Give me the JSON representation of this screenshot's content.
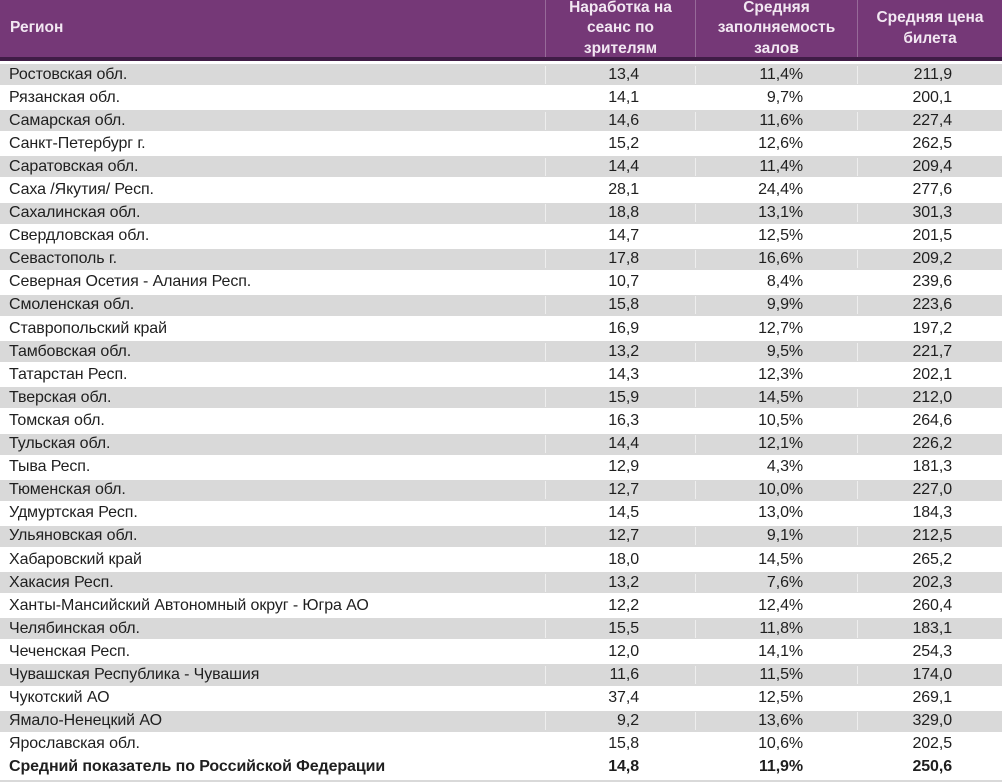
{
  "colors": {
    "header_bg": "#753877",
    "header_border": "#401c46",
    "band_row": "#d9d9d9",
    "header_text": "#f2e7f2",
    "body_text": "#1f1f1f"
  },
  "chart_data": {
    "type": "table",
    "columns": [
      "Регион",
      "Наработка на сеанс по зрителям",
      "Средняя заполняемость залов",
      "Средняя цена билета"
    ],
    "rows": [
      {
        "region": "Ростовская обл.",
        "viewers_per_session": "13,4",
        "occupancy": "11,4%",
        "ticket_price": "211,9"
      },
      {
        "region": "Рязанская обл.",
        "viewers_per_session": "14,1",
        "occupancy": "9,7%",
        "ticket_price": "200,1"
      },
      {
        "region": "Самарская обл.",
        "viewers_per_session": "14,6",
        "occupancy": "11,6%",
        "ticket_price": "227,4"
      },
      {
        "region": "Санкт-Петербург г.",
        "viewers_per_session": "15,2",
        "occupancy": "12,6%",
        "ticket_price": "262,5"
      },
      {
        "region": "Саратовская обл.",
        "viewers_per_session": "14,4",
        "occupancy": "11,4%",
        "ticket_price": "209,4"
      },
      {
        "region": "Саха /Якутия/ Респ.",
        "viewers_per_session": "28,1",
        "occupancy": "24,4%",
        "ticket_price": "277,6"
      },
      {
        "region": "Сахалинская обл.",
        "viewers_per_session": "18,8",
        "occupancy": "13,1%",
        "ticket_price": "301,3"
      },
      {
        "region": "Свердловская обл.",
        "viewers_per_session": "14,7",
        "occupancy": "12,5%",
        "ticket_price": "201,5"
      },
      {
        "region": "Севастополь г.",
        "viewers_per_session": "17,8",
        "occupancy": "16,6%",
        "ticket_price": "209,2"
      },
      {
        "region": "Северная Осетия - Алания Респ.",
        "viewers_per_session": "10,7",
        "occupancy": "8,4%",
        "ticket_price": "239,6"
      },
      {
        "region": "Смоленская обл.",
        "viewers_per_session": "15,8",
        "occupancy": "9,9%",
        "ticket_price": "223,6"
      },
      {
        "region": "Ставропольский край",
        "viewers_per_session": "16,9",
        "occupancy": "12,7%",
        "ticket_price": "197,2"
      },
      {
        "region": "Тамбовская обл.",
        "viewers_per_session": "13,2",
        "occupancy": "9,5%",
        "ticket_price": "221,7"
      },
      {
        "region": "Татарстан Респ.",
        "viewers_per_session": "14,3",
        "occupancy": "12,3%",
        "ticket_price": "202,1"
      },
      {
        "region": "Тверская обл.",
        "viewers_per_session": "15,9",
        "occupancy": "14,5%",
        "ticket_price": "212,0"
      },
      {
        "region": "Томская обл.",
        "viewers_per_session": "16,3",
        "occupancy": "10,5%",
        "ticket_price": "264,6"
      },
      {
        "region": "Тульская обл.",
        "viewers_per_session": "14,4",
        "occupancy": "12,1%",
        "ticket_price": "226,2"
      },
      {
        "region": "Тыва Респ.",
        "viewers_per_session": "12,9",
        "occupancy": "4,3%",
        "ticket_price": "181,3"
      },
      {
        "region": "Тюменская обл.",
        "viewers_per_session": "12,7",
        "occupancy": "10,0%",
        "ticket_price": "227,0"
      },
      {
        "region": "Удмуртская Респ.",
        "viewers_per_session": "14,5",
        "occupancy": "13,0%",
        "ticket_price": "184,3"
      },
      {
        "region": "Ульяновская обл.",
        "viewers_per_session": "12,7",
        "occupancy": "9,1%",
        "ticket_price": "212,5"
      },
      {
        "region": "Хабаровский край",
        "viewers_per_session": "18,0",
        "occupancy": "14,5%",
        "ticket_price": "265,2"
      },
      {
        "region": "Хакасия Респ.",
        "viewers_per_session": "13,2",
        "occupancy": "7,6%",
        "ticket_price": "202,3"
      },
      {
        "region": "Ханты-Мансийский Автономный округ - Югра АО",
        "viewers_per_session": "12,2",
        "occupancy": "12,4%",
        "ticket_price": "260,4"
      },
      {
        "region": "Челябинская обл.",
        "viewers_per_session": "15,5",
        "occupancy": "11,8%",
        "ticket_price": "183,1"
      },
      {
        "region": "Чеченская Респ.",
        "viewers_per_session": "12,0",
        "occupancy": "14,1%",
        "ticket_price": "254,3"
      },
      {
        "region": "Чувашская Республика - Чувашия",
        "viewers_per_session": "11,6",
        "occupancy": "11,5%",
        "ticket_price": "174,0"
      },
      {
        "region": "Чукотский АО",
        "viewers_per_session": "37,4",
        "occupancy": "12,5%",
        "ticket_price": "269,1"
      },
      {
        "region": "Ямало-Ненецкий АО",
        "viewers_per_session": "9,2",
        "occupancy": "13,6%",
        "ticket_price": "329,0"
      },
      {
        "region": "Ярославская обл.",
        "viewers_per_session": "15,8",
        "occupancy": "10,6%",
        "ticket_price": "202,5"
      }
    ],
    "summary_row": {
      "region": "Средний показатель по Российской Федерации",
      "viewers_per_session": "14,8",
      "occupancy": "11,9%",
      "ticket_price": "250,6"
    }
  }
}
